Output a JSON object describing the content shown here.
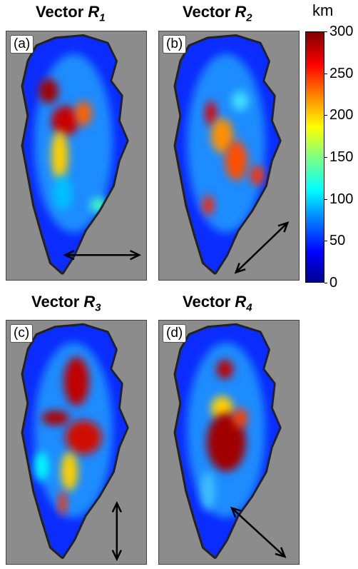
{
  "chart_data": {
    "type": "heatmap",
    "panels": [
      {
        "id": "a",
        "label": "(a)",
        "title_prefix": "Vector ",
        "title_var": "R",
        "title_sub": "1",
        "arrow_direction": "horizontal"
      },
      {
        "id": "b",
        "label": "(b)",
        "title_prefix": "Vector ",
        "title_var": "R",
        "title_sub": "2",
        "arrow_direction": "diagonal-up-right"
      },
      {
        "id": "c",
        "label": "(c)",
        "title_prefix": "Vector ",
        "title_var": "R",
        "title_sub": "3",
        "arrow_direction": "vertical"
      },
      {
        "id": "d",
        "label": "(d)",
        "title_prefix": "Vector ",
        "title_var": "R",
        "title_sub": "4",
        "arrow_direction": "diagonal-down-right"
      }
    ],
    "colorbar": {
      "unit": "km",
      "range": [
        0,
        300
      ],
      "ticks": [
        "300",
        "250",
        "200",
        "150",
        "100",
        "50",
        "0"
      ],
      "colormap": "jet"
    }
  },
  "colors": {
    "background_gray": "#8c8c8c",
    "coast_black": "#111111",
    "ice_blue": "#0a2cff",
    "arrow": "#000000"
  }
}
